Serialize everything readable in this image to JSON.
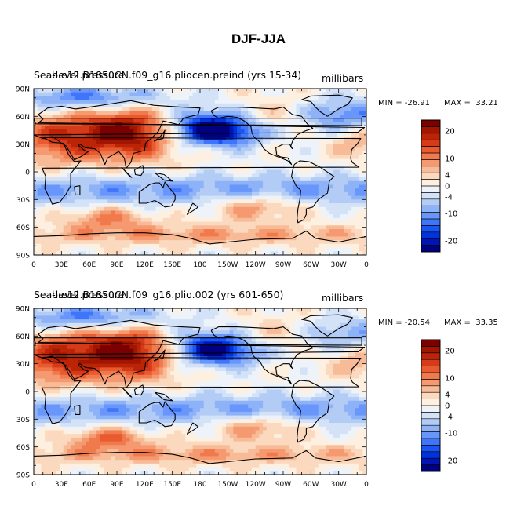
{
  "figure": {
    "title": "DJF-JJA"
  },
  "chart_data": [
    {
      "type": "heatmap",
      "panel_id": "top",
      "left_label": "Sea-level pressure",
      "center_label": "b.e12.B1850CN.f09_g16.pliocen.preind (yrs 15-34)",
      "units": "millibars",
      "min_label": "MIN = -26.91",
      "max_label": "MAX =  33.21",
      "min": -26.91,
      "max": 33.21,
      "x_ticklabels": [
        "0",
        "30E",
        "60E",
        "90E",
        "120E",
        "150E",
        "180",
        "150W",
        "120W",
        "90W",
        "60W",
        "30W",
        "0"
      ],
      "y_ticklabels": [
        "90N",
        "60N",
        "30N",
        "0",
        "30S",
        "60S",
        "90S"
      ],
      "contour_levels": [
        -24,
        -22,
        -20,
        -18,
        -16,
        -14,
        -12,
        -10,
        -8,
        -6,
        -4,
        -2,
        0,
        2,
        4,
        6,
        8,
        10,
        12,
        14,
        16,
        18,
        20,
        22,
        24
      ],
      "colorbar_labels": [
        "20",
        "10",
        "4",
        "0",
        "-4",
        "-10",
        "-20"
      ]
    },
    {
      "type": "heatmap",
      "panel_id": "bottom",
      "left_label": "Sea-level pressure",
      "center_label": "b.e12.B1850CN.f09_g16.plio.002 (yrs 601-650)",
      "units": "millibars",
      "min_label": "MIN = -20.54",
      "max_label": "MAX =  33.35",
      "min": -20.54,
      "max": 33.35,
      "x_ticklabels": [
        "0",
        "30E",
        "60E",
        "90E",
        "120E",
        "150E",
        "180",
        "150W",
        "120W",
        "90W",
        "60W",
        "30W",
        "0"
      ],
      "y_ticklabels": [
        "90N",
        "60N",
        "30N",
        "0",
        "30S",
        "60S",
        "90S"
      ],
      "contour_levels": [
        -24,
        -22,
        -20,
        -18,
        -16,
        -14,
        -12,
        -10,
        -8,
        -6,
        -4,
        -2,
        0,
        2,
        4,
        6,
        8,
        10,
        12,
        14,
        16,
        18,
        20,
        22,
        24
      ],
      "colorbar_labels": [
        "20",
        "10",
        "4",
        "0",
        "-4",
        "-10",
        "-20"
      ]
    }
  ],
  "colorbar_colors": [
    "#000080",
    "#0015b4",
    "#0033d9",
    "#1a54f2",
    "#3f75fb",
    "#6896fb",
    "#8eb2f8",
    "#b3ccf6",
    "#d3e2f7",
    "#eef3fa",
    "#fdf0e0",
    "#fbd9bf",
    "#f8bb97",
    "#f59a70",
    "#f17a4d",
    "#e85a30",
    "#d53b18",
    "#bb2407",
    "#a01600",
    "#7d0000"
  ]
}
